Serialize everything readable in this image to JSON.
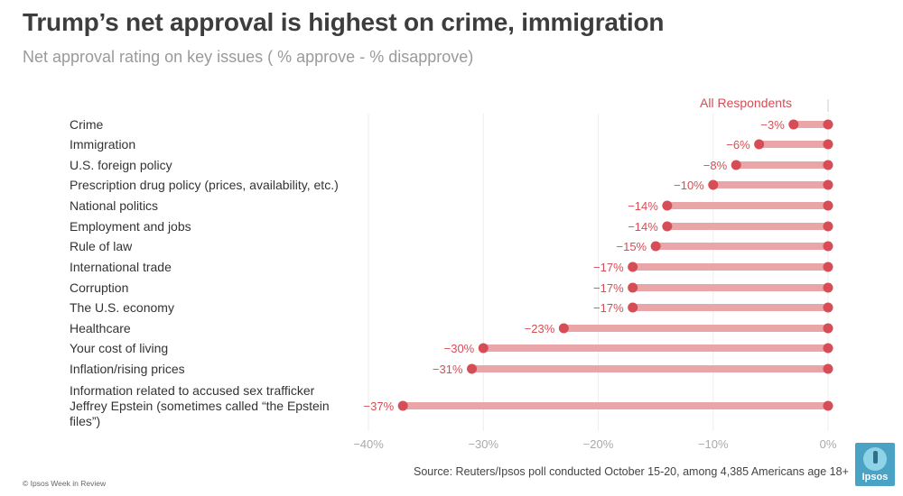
{
  "header": {
    "title": "Trump’s net approval is highest on crime, immigration",
    "subtitle": "Net approval rating on key issues ( % approve - % disapprove)"
  },
  "footer": {
    "source": "Source: Reuters/Ipsos poll conducted October 15-20, among 4,385 Americans age 18+",
    "copyright": "© Ipsos Week in Review"
  },
  "logo": {
    "text": "Ipsos",
    "color": "#4aa3c4"
  },
  "chart_data": {
    "type": "dot-bar",
    "series": [
      {
        "name": "All Respondents",
        "values": [
          -3,
          -6,
          -8,
          -10,
          -14,
          -14,
          -15,
          -17,
          -17,
          -17,
          -23,
          -30,
          -31,
          -37
        ]
      }
    ],
    "categories": [
      [
        "Crime"
      ],
      [
        "Immigration"
      ],
      [
        "U.S. foreign policy"
      ],
      [
        "Prescription drug policy (prices, availability, etc.)"
      ],
      [
        "National politics"
      ],
      [
        "Employment and jobs"
      ],
      [
        "Rule of law"
      ],
      [
        "International trade"
      ],
      [
        "Corruption"
      ],
      [
        "The U.S. economy"
      ],
      [
        "Healthcare"
      ],
      [
        "Your cost of living"
      ],
      [
        "Inflation/rising prices"
      ],
      [
        "Information related to accused sex trafficker",
        "Jeffrey Epstein (sometimes called “the Epstein",
        "files”)"
      ]
    ],
    "value_labels": [
      "−3%",
      "−6%",
      "−8%",
      "−10%",
      "−14%",
      "−14%",
      "−15%",
      "−17%",
      "−17%",
      "−17%",
      "−23%",
      "−30%",
      "−31%",
      "−37%"
    ],
    "xlim": [
      -40,
      0
    ],
    "x_ticks": [
      -40,
      -30,
      -20,
      -10,
      0
    ],
    "x_tick_labels": [
      "−40%",
      "−30%",
      "−20%",
      "−10%",
      "0%"
    ],
    "grid": "vertical",
    "colors": {
      "dot": "#d64d55",
      "bar": "#eaa5a8",
      "label": "#d64d55",
      "grid": "#eeeeee"
    }
  }
}
